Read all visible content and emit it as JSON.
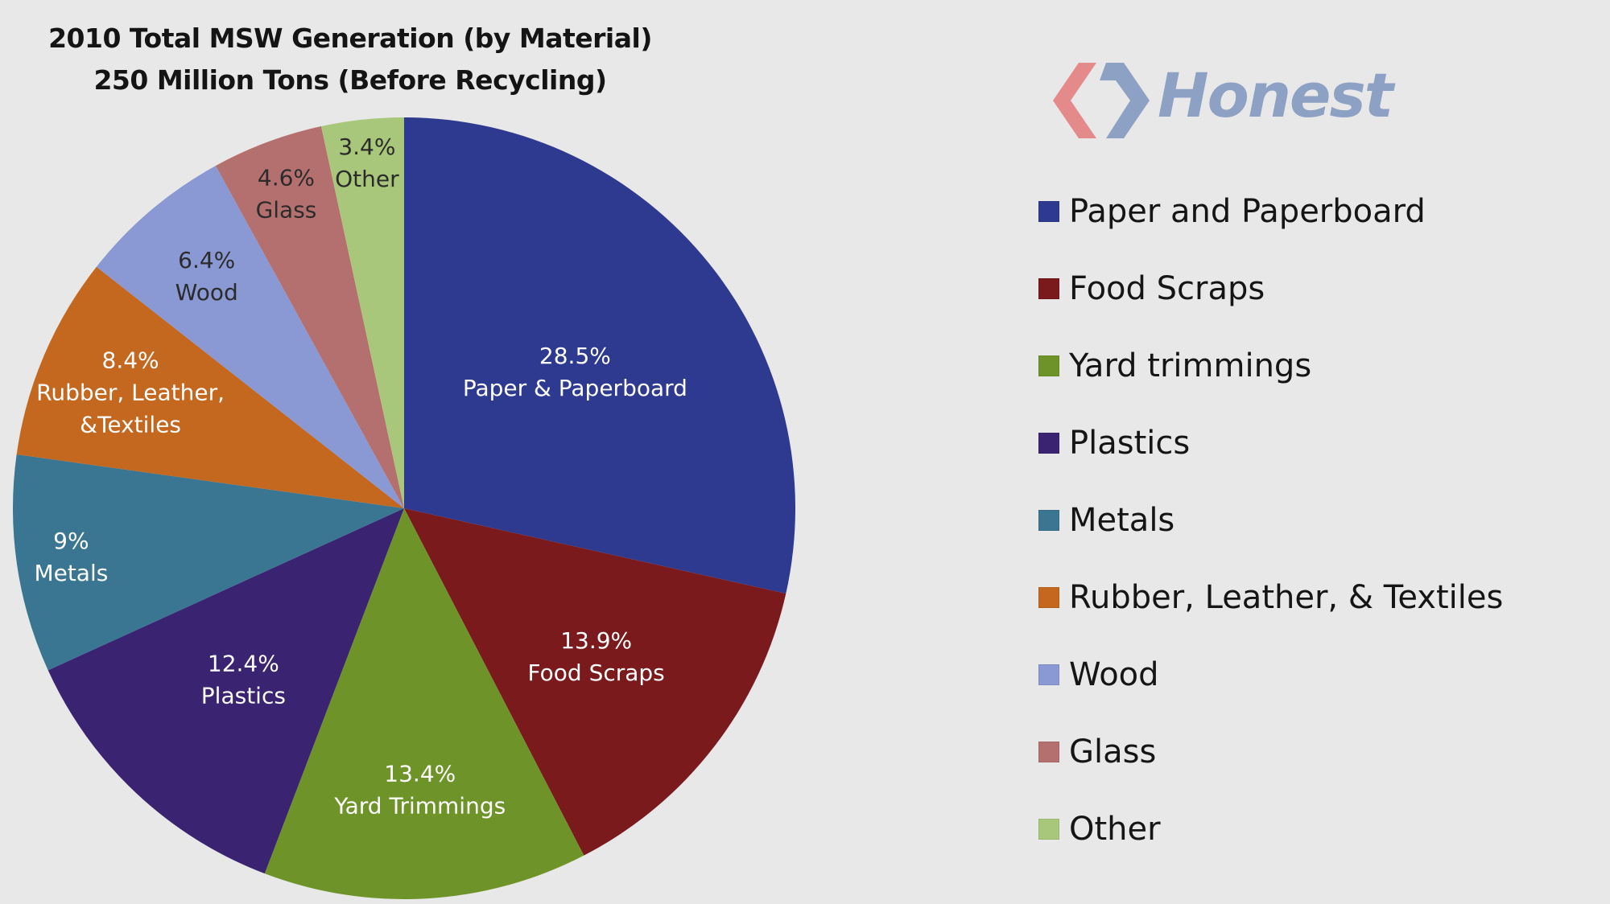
{
  "chart_data": {
    "type": "pie",
    "title": "2010 Total MSW Generation (by Material)",
    "subtitle": "250 Million Tons (Before Recycling)",
    "slices": [
      {
        "name": "Paper and Paperboard",
        "value": 28.5,
        "pct_label": "28.5%",
        "slice_label": "Paper & Paperboard",
        "color": "#2e3a8f"
      },
      {
        "name": "Food Scraps",
        "value": 13.9,
        "pct_label": "13.9%",
        "slice_label": "Food Scraps",
        "color": "#7a1a1d"
      },
      {
        "name": "Yard trimmings",
        "value": 13.4,
        "pct_label": "13.4%",
        "slice_label": "Yard Trimmings",
        "color": "#6e9429"
      },
      {
        "name": "Plastics",
        "value": 12.4,
        "pct_label": "12.4%",
        "slice_label": "Plastics",
        "color": "#3a2370"
      },
      {
        "name": "Metals",
        "value": 9,
        "pct_label": "9%",
        "slice_label": "Metals",
        "color": "#3a7591"
      },
      {
        "name": "Rubber, Leather, & Textiles",
        "value": 8.4,
        "pct_label": "8.4%",
        "slice_label_lines": [
          "Rubber, Leather,",
          "&Textiles"
        ],
        "color": "#c4671f"
      },
      {
        "name": "Wood",
        "value": 6.4,
        "pct_label": "6.4%",
        "slice_label": "Wood",
        "color": "#8a98d3"
      },
      {
        "name": "Glass",
        "value": 4.6,
        "pct_label": "4.6%",
        "slice_label": "Glass",
        "color": "#b4706f"
      },
      {
        "name": "Other",
        "value": 3.4,
        "pct_label": "3.4%",
        "slice_label": "Other",
        "color": "#a8c77a"
      }
    ],
    "legend_placement": "right"
  },
  "logo": {
    "text": "Honest"
  }
}
